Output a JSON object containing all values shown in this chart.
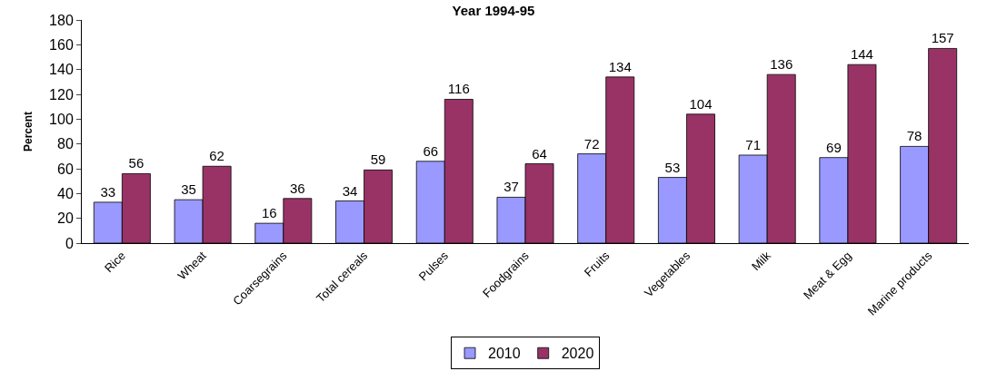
{
  "chart_data": {
    "type": "bar",
    "title": "Year 1994-95",
    "ylabel": "Percent",
    "categories": [
      "Rice",
      "Wheat",
      "Coarsegrains",
      "Total cereals",
      "Pulses",
      "Foodgrains",
      "Fruits",
      "Vegetables",
      "Milk",
      "Meat & Egg",
      "Marine products"
    ],
    "series": [
      {
        "name": "2010",
        "color": "#9999ff",
        "values": [
          33,
          35,
          16,
          34,
          66,
          37,
          72,
          53,
          71,
          69,
          78
        ]
      },
      {
        "name": "2020",
        "color": "#993366",
        "values": [
          56,
          62,
          36,
          59,
          116,
          64,
          134,
          104,
          136,
          144,
          157
        ]
      }
    ],
    "ylim": [
      0,
      180
    ],
    "yticks": [
      0,
      20,
      40,
      60,
      80,
      100,
      120,
      140,
      160,
      180
    ],
    "data_labels": true,
    "legend": "bottom"
  }
}
